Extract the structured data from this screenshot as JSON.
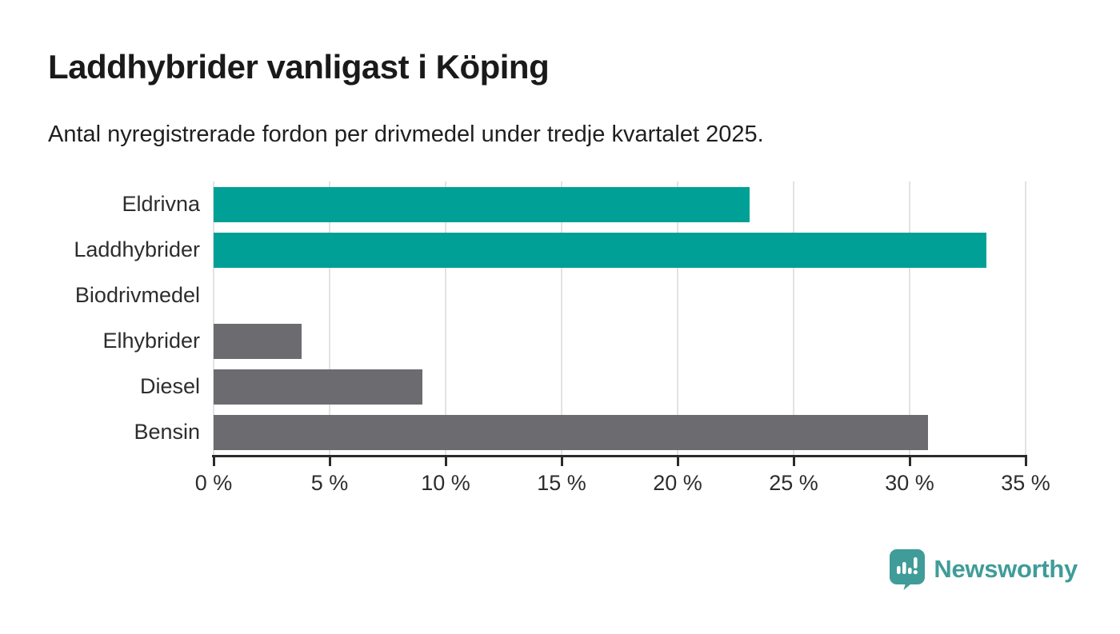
{
  "header": {
    "title": "Laddhybrider vanligast i Köping",
    "subtitle": "Antal nyregistrerade fordon per drivmedel under tredje kvartalet 2025."
  },
  "chart_data": {
    "type": "bar",
    "orientation": "horizontal",
    "title": "Laddhybrider vanligast i Köping",
    "subtitle": "Antal nyregistrerade fordon per drivmedel under tredje kvartalet 2025.",
    "categories": [
      "Eldrivna",
      "Laddhybrider",
      "Biodrivmedel",
      "Elhybrider",
      "Diesel",
      "Bensin"
    ],
    "values": [
      23.1,
      33.3,
      0,
      3.8,
      9.0,
      30.8
    ],
    "unit": "%",
    "bar_colors": [
      "#00a096",
      "#00a096",
      "#6c6b70",
      "#6c6b70",
      "#6c6b70",
      "#6c6b70"
    ],
    "xlabel": "",
    "ylabel": "",
    "xlim": [
      0,
      35
    ],
    "x_ticks": [
      0,
      5,
      10,
      15,
      20,
      25,
      30,
      35
    ],
    "x_tick_labels": [
      "0 %",
      "5 %",
      "10 %",
      "15 %",
      "20 %",
      "25 %",
      "30 %",
      "35 %"
    ],
    "grid": "vertical-on",
    "legend": "none"
  },
  "colors": {
    "teal": "#00a096",
    "gray": "#6c6b70",
    "grid": "#e2e2e2",
    "axis": "#2b2b2b",
    "text": "#2d2d2d",
    "brand_teal": "#3f9c99"
  },
  "footer": {
    "brand": "Newsworthy",
    "logo_icon": "speech-bubble-bar-chart-icon"
  }
}
